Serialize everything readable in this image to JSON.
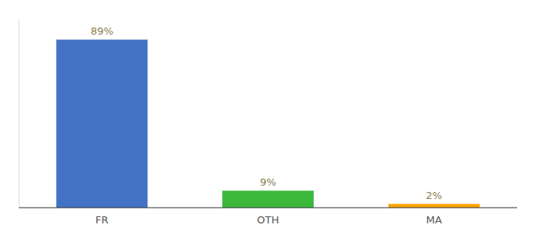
{
  "chart_data": {
    "type": "bar",
    "categories": [
      "FR",
      "OTH",
      "MA"
    ],
    "values": [
      89,
      9,
      2
    ],
    "value_labels": [
      "89%",
      "9%",
      "2%"
    ],
    "colors": [
      "#4472C4",
      "#3CB93C",
      "#FFA500"
    ],
    "ylim": [
      0,
      100
    ],
    "data_labels": true,
    "tick_labels": "x",
    "grid": false
  }
}
